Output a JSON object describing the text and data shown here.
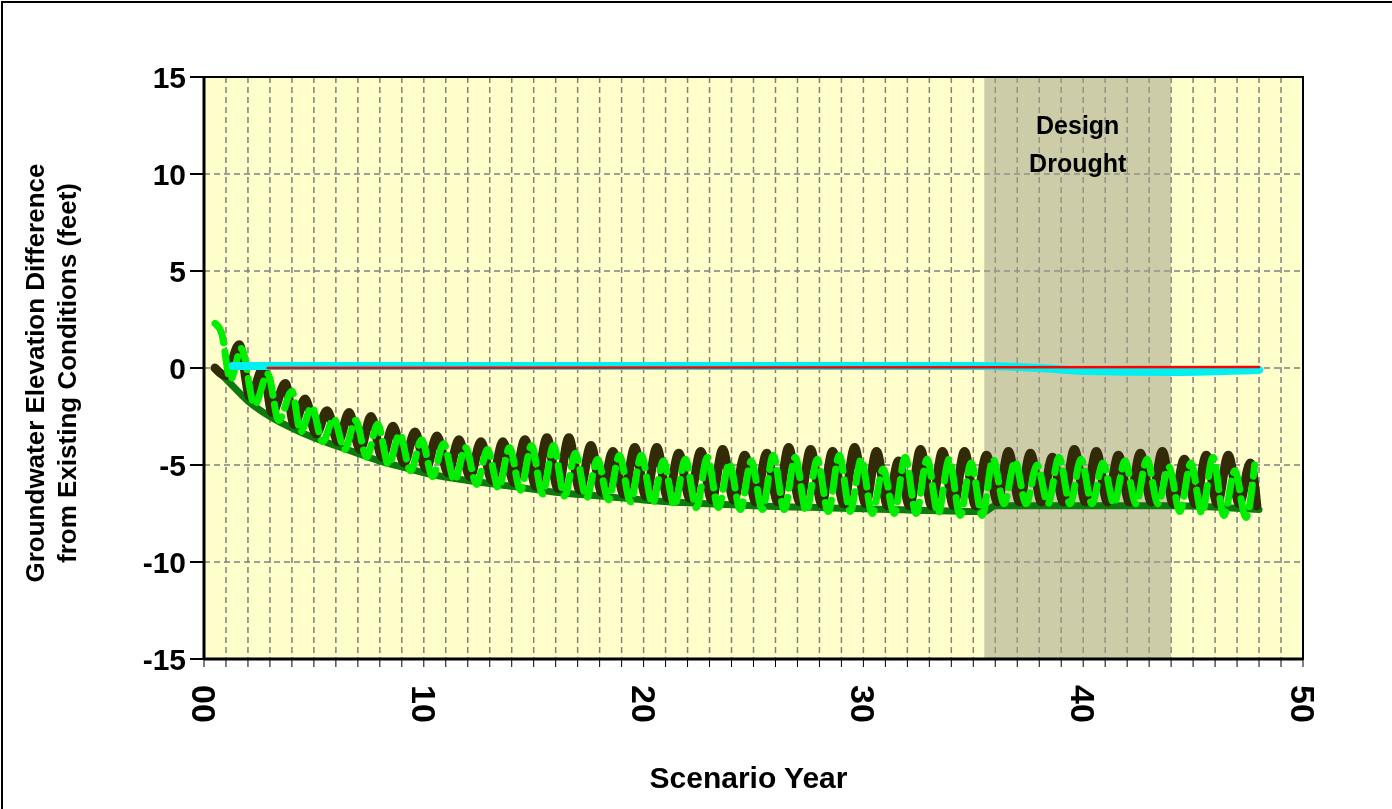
{
  "chart_data": {
    "type": "line",
    "xlabel": "Scenario Year",
    "ylabel": "Groundwater Elevation Difference\nfrom Existing Conditions (feet)",
    "xlim": [
      0,
      50
    ],
    "ylim": [
      -15,
      15
    ],
    "xticks": [
      {
        "value": 0,
        "label": "00"
      },
      {
        "value": 1,
        "label": null
      },
      {
        "value": 2,
        "label": null
      },
      {
        "value": 3,
        "label": null
      },
      {
        "value": 4,
        "label": null
      },
      {
        "value": 5,
        "label": null
      },
      {
        "value": 6,
        "label": null
      },
      {
        "value": 7,
        "label": null
      },
      {
        "value": 8,
        "label": null
      },
      {
        "value": 9,
        "label": null
      },
      10,
      {
        "value": 11,
        "label": null
      },
      {
        "value": 12,
        "label": null
      },
      {
        "value": 13,
        "label": null
      },
      {
        "value": 14,
        "label": null
      },
      {
        "value": 15,
        "label": null
      },
      {
        "value": 16,
        "label": null
      },
      {
        "value": 17,
        "label": null
      },
      {
        "value": 18,
        "label": null
      },
      {
        "value": 19,
        "label": null
      },
      20,
      {
        "value": 21,
        "label": null
      },
      {
        "value": 22,
        "label": null
      },
      {
        "value": 23,
        "label": null
      },
      {
        "value": 24,
        "label": null
      },
      {
        "value": 25,
        "label": null
      },
      {
        "value": 26,
        "label": null
      },
      {
        "value": 27,
        "label": null
      },
      {
        "value": 28,
        "label": null
      },
      {
        "value": 29,
        "label": null
      },
      30,
      {
        "value": 31,
        "label": null
      },
      {
        "value": 32,
        "label": null
      },
      {
        "value": 33,
        "label": null
      },
      {
        "value": 34,
        "label": null
      },
      {
        "value": 35,
        "label": null
      },
      {
        "value": 36,
        "label": null
      },
      {
        "value": 37,
        "label": null
      },
      {
        "value": 38,
        "label": null
      },
      {
        "value": 39,
        "label": null
      },
      40,
      {
        "value": 41,
        "label": null
      },
      {
        "value": 42,
        "label": null
      },
      {
        "value": 43,
        "label": null
      },
      {
        "value": 44,
        "label": null
      },
      {
        "value": 45,
        "label": null
      },
      {
        "value": 46,
        "label": null
      },
      {
        "value": 47,
        "label": null
      },
      {
        "value": 48,
        "label": null
      },
      {
        "value": 49,
        "label": null
      },
      50
    ],
    "yticks": [
      -15,
      -10,
      -5,
      0,
      5,
      10,
      15
    ],
    "grid": true,
    "bands": [
      {
        "axis": "x",
        "from": 35.5,
        "to": 44,
        "label": "Design\nDrought",
        "color": "#a3a38c"
      }
    ],
    "series": [
      {
        "color": "#0d7a0d",
        "x": [
          0.5,
          1.2,
          2,
          3,
          4,
          5,
          6,
          7,
          8,
          9,
          10,
          12,
          14,
          16,
          18,
          20,
          22,
          25,
          30,
          35.5,
          36,
          44,
          48
        ],
        "values": [
          0,
          -0.8,
          -1.7,
          -2.5,
          -3.1,
          -3.6,
          -4.0,
          -4.4,
          -4.8,
          -5.1,
          -5.4,
          -5.8,
          -6.1,
          -6.4,
          -6.6,
          -6.8,
          -6.95,
          -7.1,
          -7.25,
          -7.4,
          -7.1,
          -7.1,
          -7.3
        ]
      },
      {
        "color": "#332b08",
        "x": [
          0.5,
          1.0,
          1.6,
          2.1,
          2.7,
          3.1,
          3.7,
          4.1,
          4.6,
          5.1,
          5.6,
          6.1,
          6.6,
          7.1,
          7.6,
          8.1,
          8.6,
          9.1,
          9.6,
          10.1,
          10.6,
          11.1,
          11.6,
          12.1,
          12.6,
          13.1,
          13.6,
          14.1,
          14.6,
          15.1,
          15.6,
          16.1,
          16.6,
          17.1,
          17.6,
          18.1,
          18.6,
          19.1,
          19.6,
          20.1,
          20.6,
          21.1,
          21.6,
          22.1,
          22.6,
          23.1,
          23.6,
          24.1,
          24.6,
          25.1,
          25.6,
          26.1,
          26.6,
          27.1,
          27.6,
          28.1,
          28.6,
          29.1,
          29.6,
          30.1,
          30.6,
          31.1,
          31.6,
          32.1,
          32.6,
          33.1,
          33.6,
          34.1,
          34.6,
          35.1,
          35.6,
          36.1,
          36.6,
          37.1,
          37.6,
          38.1,
          38.6,
          39.1,
          39.6,
          40.1,
          40.6,
          41.1,
          41.6,
          42.1,
          42.6,
          43.1,
          43.6,
          44.1,
          44.6,
          45.1,
          45.6,
          46.1,
          46.6,
          47.1,
          47.6,
          47.9
        ],
        "values": [
          0,
          -0.4,
          1.2,
          -1.5,
          0.0,
          -2.3,
          -0.8,
          -2.9,
          -1.6,
          -3.4,
          -2.2,
          -3.8,
          -2.3,
          -4.2,
          -2.5,
          -4.6,
          -3.0,
          -4.9,
          -3.3,
          -5.2,
          -3.5,
          -5.4,
          -3.7,
          -5.6,
          -3.8,
          -5.8,
          -3.8,
          -5.9,
          -3.7,
          -6.1,
          -3.6,
          -6.2,
          -3.6,
          -6.3,
          -4.0,
          -6.4,
          -4.3,
          -6.5,
          -4.1,
          -6.6,
          -4.1,
          -6.7,
          -4.4,
          -6.7,
          -4.3,
          -6.8,
          -4.2,
          -6.8,
          -4.5,
          -6.9,
          -4.4,
          -6.9,
          -4.1,
          -6.9,
          -4.2,
          -7.0,
          -4.3,
          -7.0,
          -4.1,
          -7.0,
          -4.3,
          -7.1,
          -4.8,
          -7.1,
          -4.2,
          -7.1,
          -4.3,
          -7.1,
          -4.3,
          -7.1,
          -4.5,
          -6.9,
          -4.3,
          -6.9,
          -4.4,
          -6.9,
          -4.6,
          -6.9,
          -4.2,
          -6.9,
          -4.3,
          -6.9,
          -4.5,
          -6.9,
          -4.4,
          -6.9,
          -4.3,
          -7.0,
          -4.7,
          -7.0,
          -4.5,
          -7.0,
          -4.5,
          -7.0,
          -4.9,
          -7.1
        ]
      },
      {
        "color": "#00ee00",
        "line_style": "dashed",
        "x": [
          0.5,
          0.8,
          1.2,
          1.7,
          2.3,
          2.9,
          3.4,
          4.0,
          4.4,
          4.9,
          5.4,
          5.9,
          6.4,
          6.9,
          7.4,
          7.9,
          8.4,
          8.9,
          9.4,
          9.9,
          10.4,
          10.9,
          11.4,
          11.9,
          12.4,
          12.9,
          13.4,
          13.9,
          14.4,
          14.9,
          15.4,
          15.9,
          16.4,
          16.9,
          17.4,
          17.9,
          18.4,
          18.9,
          19.4,
          19.9,
          20.4,
          20.9,
          21.4,
          21.9,
          22.4,
          22.9,
          23.4,
          23.9,
          24.4,
          24.9,
          25.4,
          25.9,
          26.4,
          26.9,
          27.4,
          27.9,
          28.4,
          28.9,
          29.4,
          29.9,
          30.4,
          30.9,
          31.4,
          31.9,
          32.4,
          32.9,
          33.4,
          33.9,
          34.4,
          34.9,
          35.4,
          35.9,
          36.4,
          36.9,
          37.4,
          37.9,
          38.4,
          38.9,
          39.4,
          39.9,
          40.4,
          40.9,
          41.4,
          41.9,
          42.4,
          42.9,
          43.4,
          43.9,
          44.4,
          44.9,
          45.4,
          45.9,
          46.4,
          46.9,
          47.4,
          47.8
        ],
        "values": [
          2.3,
          1.8,
          -0.6,
          1.0,
          -1.9,
          -0.3,
          -2.7,
          -1.2,
          -3.3,
          -2.0,
          -3.8,
          -2.6,
          -4.2,
          -2.7,
          -4.6,
          -2.9,
          -5.0,
          -3.4,
          -5.3,
          -3.7,
          -5.6,
          -3.9,
          -5.8,
          -4.1,
          -6.0,
          -4.2,
          -6.2,
          -4.1,
          -6.3,
          -4.0,
          -6.5,
          -4.0,
          -6.6,
          -4.4,
          -6.7,
          -4.7,
          -6.8,
          -4.5,
          -6.9,
          -4.5,
          -7.0,
          -4.8,
          -7.1,
          -4.7,
          -7.2,
          -4.6,
          -7.2,
          -4.9,
          -7.3,
          -4.8,
          -7.3,
          -4.5,
          -7.3,
          -4.6,
          -7.4,
          -4.7,
          -7.4,
          -4.5,
          -7.4,
          -4.7,
          -7.5,
          -5.2,
          -7.5,
          -4.6,
          -7.5,
          -4.7,
          -7.5,
          -4.7,
          -7.6,
          -4.9,
          -7.6,
          -4.7,
          -7.0,
          -4.8,
          -7.0,
          -5.0,
          -7.0,
          -4.6,
          -7.0,
          -4.7,
          -7.0,
          -4.9,
          -7.0,
          -4.8,
          -7.0,
          -4.7,
          -7.0,
          -5.1,
          -7.4,
          -4.9,
          -7.5,
          -4.6,
          -7.6,
          -5.3,
          -7.7,
          -5.0
        ]
      },
      {
        "color": "#00f0f0",
        "x": [
          1.3,
          10,
          20,
          35,
          38,
          40,
          44,
          48
        ],
        "values": [
          0.1,
          0.1,
          0.1,
          0.1,
          0.0,
          -0.15,
          -0.2,
          -0.1
        ]
      },
      {
        "color": "#ff0000",
        "x": [
          2.9,
          48
        ],
        "values": [
          0,
          0.05
        ]
      }
    ]
  }
}
